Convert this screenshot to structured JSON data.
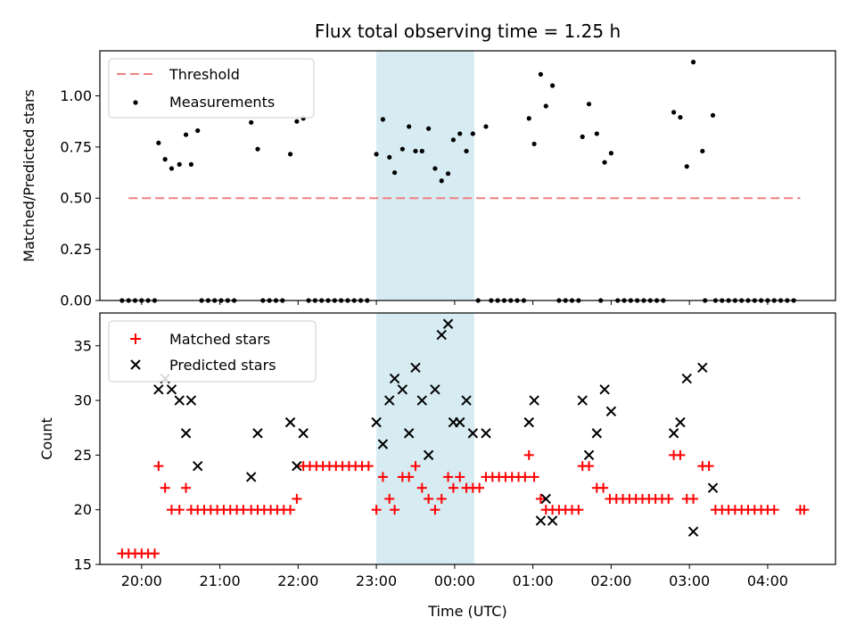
{
  "chart_data": [
    {
      "type": "scatter",
      "title": "Flux total observing time = 1.25 h",
      "xlabel": "",
      "ylabel": "Matched/Predicted stars",
      "xlim": [
        "19:28",
        "04:52"
      ],
      "ylim": [
        0.0,
        1.22
      ],
      "yticks": [
        "0.00",
        "0.25",
        "0.50",
        "0.75",
        "1.00"
      ],
      "shaded_interval": {
        "start": "23:00",
        "end": "00:15",
        "color": "#add8e6"
      },
      "legend": {
        "placement": "top-left",
        "entries": [
          "Threshold",
          "Measurements"
        ]
      },
      "threshold": {
        "name": "Threshold",
        "y": 0.5,
        "x_start": "19:50",
        "x_end": "04:25",
        "color": "#f08080",
        "style": "dashed"
      },
      "measurements": {
        "name": "Measurements",
        "color": "#000000",
        "points": [
          [
            "19:45",
            0
          ],
          [
            "19:50",
            0
          ],
          [
            "19:55",
            0
          ],
          [
            "20:00",
            0
          ],
          [
            "20:05",
            0
          ],
          [
            "20:10",
            0
          ],
          [
            "20:13",
            0.77
          ],
          [
            "20:18",
            0.69
          ],
          [
            "20:23",
            0.645
          ],
          [
            "20:29",
            0.665
          ],
          [
            "20:34",
            0.81
          ],
          [
            "20:38",
            0.665
          ],
          [
            "20:43",
            0.83
          ],
          [
            "20:46",
            0
          ],
          [
            "20:51",
            0
          ],
          [
            "20:56",
            0
          ],
          [
            "21:01",
            0
          ],
          [
            "21:06",
            0
          ],
          [
            "21:11",
            0
          ],
          [
            "21:24",
            0.87
          ],
          [
            "21:29",
            0.74
          ],
          [
            "21:33",
            0
          ],
          [
            "21:38",
            0
          ],
          [
            "21:43",
            0
          ],
          [
            "21:48",
            0
          ],
          [
            "21:54",
            0.715
          ],
          [
            "21:59",
            0.875
          ],
          [
            "22:04",
            0.89
          ],
          [
            "22:08",
            0
          ],
          [
            "22:13",
            0
          ],
          [
            "22:18",
            0
          ],
          [
            "22:23",
            0
          ],
          [
            "22:28",
            0
          ],
          [
            "22:33",
            0
          ],
          [
            "22:38",
            0
          ],
          [
            "22:43",
            0
          ],
          [
            "22:48",
            0
          ],
          [
            "22:53",
            0
          ],
          [
            "23:00",
            0.715
          ],
          [
            "23:05",
            0.885
          ],
          [
            "23:10",
            0.7
          ],
          [
            "23:14",
            0.625
          ],
          [
            "23:20",
            0.74
          ],
          [
            "23:25",
            0.85
          ],
          [
            "23:30",
            0.73
          ],
          [
            "23:35",
            0.73
          ],
          [
            "23:40",
            0.84
          ],
          [
            "23:45",
            0.645
          ],
          [
            "23:50",
            0.585
          ],
          [
            "23:55",
            0.62
          ],
          [
            "23:59",
            0.785
          ],
          [
            "00:04",
            0.815
          ],
          [
            "00:09",
            0.73
          ],
          [
            "00:14",
            0.815
          ],
          [
            "00:24",
            0.85
          ],
          [
            "00:18",
            0
          ],
          [
            "00:28",
            0
          ],
          [
            "00:33",
            0
          ],
          [
            "00:38",
            0
          ],
          [
            "00:43",
            0
          ],
          [
            "00:48",
            0
          ],
          [
            "00:53",
            0
          ],
          [
            "00:57",
            0.89
          ],
          [
            "01:01",
            0.765
          ],
          [
            "01:06",
            1.105
          ],
          [
            "01:10",
            0.95
          ],
          [
            "01:15",
            1.05
          ],
          [
            "01:20",
            0
          ],
          [
            "01:25",
            0
          ],
          [
            "01:30",
            0
          ],
          [
            "01:35",
            0
          ],
          [
            "01:38",
            0.8
          ],
          [
            "01:43",
            0.96
          ],
          [
            "01:49",
            0.815
          ],
          [
            "01:55",
            0.675
          ],
          [
            "02:00",
            0.72
          ],
          [
            "01:52",
            0
          ],
          [
            "02:05",
            0
          ],
          [
            "02:10",
            0
          ],
          [
            "02:15",
            0
          ],
          [
            "02:20",
            0
          ],
          [
            "02:25",
            0
          ],
          [
            "02:30",
            0
          ],
          [
            "02:35",
            0
          ],
          [
            "02:40",
            0
          ],
          [
            "02:48",
            0.92
          ],
          [
            "02:53",
            0.895
          ],
          [
            "02:58",
            0.655
          ],
          [
            "03:03",
            1.165
          ],
          [
            "03:10",
            0.73
          ],
          [
            "03:18",
            0.905
          ],
          [
            "03:12",
            0
          ],
          [
            "03:20",
            0
          ],
          [
            "03:25",
            0
          ],
          [
            "03:30",
            0
          ],
          [
            "03:35",
            0
          ],
          [
            "03:40",
            0
          ],
          [
            "03:45",
            0
          ],
          [
            "03:50",
            0
          ],
          [
            "03:55",
            0
          ],
          [
            "04:00",
            0
          ],
          [
            "04:05",
            0
          ],
          [
            "04:10",
            0
          ],
          [
            "04:15",
            0
          ],
          [
            "04:20",
            0
          ]
        ]
      }
    },
    {
      "type": "scatter",
      "title": "",
      "xlabel": "Time (UTC)",
      "ylabel": "Count",
      "xlim": [
        "19:28",
        "04:52"
      ],
      "ylim": [
        15,
        38
      ],
      "yticks": [
        "15",
        "20",
        "25",
        "30",
        "35"
      ],
      "xticks": [
        "20:00",
        "21:00",
        "22:00",
        "23:00",
        "00:00",
        "01:00",
        "02:00",
        "03:00",
        "04:00"
      ],
      "shaded_interval": {
        "start": "23:00",
        "end": "00:15",
        "color": "#add8e6"
      },
      "legend": {
        "placement": "top-left",
        "entries": [
          "Matched stars",
          "Predicted stars"
        ]
      },
      "series": [
        {
          "name": "Matched stars",
          "marker": "plus",
          "color": "#ff0000",
          "points": [
            [
              "19:45",
              16
            ],
            [
              "19:50",
              16
            ],
            [
              "19:55",
              16
            ],
            [
              "20:00",
              16
            ],
            [
              "20:05",
              16
            ],
            [
              "20:10",
              16
            ],
            [
              "20:13",
              24
            ],
            [
              "20:18",
              22
            ],
            [
              "20:23",
              20
            ],
            [
              "20:29",
              20
            ],
            [
              "20:34",
              22
            ],
            [
              "20:38",
              20
            ],
            [
              "20:43",
              20
            ],
            [
              "20:48",
              20
            ],
            [
              "20:53",
              20
            ],
            [
              "20:58",
              20
            ],
            [
              "21:03",
              20
            ],
            [
              "21:08",
              20
            ],
            [
              "21:13",
              20
            ],
            [
              "21:18",
              20
            ],
            [
              "21:24",
              20
            ],
            [
              "21:29",
              20
            ],
            [
              "21:34",
              20
            ],
            [
              "21:39",
              20
            ],
            [
              "21:44",
              20
            ],
            [
              "21:49",
              20
            ],
            [
              "21:54",
              20
            ],
            [
              "21:59",
              21
            ],
            [
              "22:04",
              24
            ],
            [
              "22:09",
              24
            ],
            [
              "22:14",
              24
            ],
            [
              "22:19",
              24
            ],
            [
              "22:24",
              24
            ],
            [
              "22:29",
              24
            ],
            [
              "22:34",
              24
            ],
            [
              "22:39",
              24
            ],
            [
              "22:44",
              24
            ],
            [
              "22:49",
              24
            ],
            [
              "22:54",
              24
            ],
            [
              "23:00",
              20
            ],
            [
              "23:05",
              23
            ],
            [
              "23:10",
              21
            ],
            [
              "23:14",
              20
            ],
            [
              "23:20",
              23
            ],
            [
              "23:25",
              23
            ],
            [
              "23:30",
              24
            ],
            [
              "23:35",
              22
            ],
            [
              "23:40",
              21
            ],
            [
              "23:45",
              20
            ],
            [
              "23:50",
              21
            ],
            [
              "23:55",
              23
            ],
            [
              "23:59",
              22
            ],
            [
              "00:04",
              23
            ],
            [
              "00:09",
              22
            ],
            [
              "00:14",
              22
            ],
            [
              "00:19",
              22
            ],
            [
              "00:24",
              23
            ],
            [
              "00:29",
              23
            ],
            [
              "00:34",
              23
            ],
            [
              "00:39",
              23
            ],
            [
              "00:44",
              23
            ],
            [
              "00:49",
              23
            ],
            [
              "00:54",
              23
            ],
            [
              "00:57",
              25
            ],
            [
              "01:01",
              23
            ],
            [
              "01:06",
              21
            ],
            [
              "01:10",
              20
            ],
            [
              "01:15",
              20
            ],
            [
              "01:20",
              20
            ],
            [
              "01:25",
              20
            ],
            [
              "01:30",
              20
            ],
            [
              "01:35",
              20
            ],
            [
              "01:38",
              24
            ],
            [
              "01:43",
              24
            ],
            [
              "01:49",
              22
            ],
            [
              "01:54",
              22
            ],
            [
              "01:59",
              21
            ],
            [
              "02:04",
              21
            ],
            [
              "02:09",
              21
            ],
            [
              "02:14",
              21
            ],
            [
              "02:19",
              21
            ],
            [
              "02:24",
              21
            ],
            [
              "02:29",
              21
            ],
            [
              "02:34",
              21
            ],
            [
              "02:39",
              21
            ],
            [
              "02:44",
              21
            ],
            [
              "02:48",
              25
            ],
            [
              "02:53",
              25
            ],
            [
              "02:58",
              21
            ],
            [
              "03:03",
              21
            ],
            [
              "03:10",
              24
            ],
            [
              "03:15",
              24
            ],
            [
              "03:20",
              20
            ],
            [
              "03:25",
              20
            ],
            [
              "03:30",
              20
            ],
            [
              "03:35",
              20
            ],
            [
              "03:40",
              20
            ],
            [
              "03:45",
              20
            ],
            [
              "03:50",
              20
            ],
            [
              "03:55",
              20
            ],
            [
              "04:00",
              20
            ],
            [
              "04:05",
              20
            ],
            [
              "04:25",
              20
            ],
            [
              "04:28",
              20
            ]
          ]
        },
        {
          "name": "Predicted stars",
          "marker": "x",
          "color": "#000000",
          "points": [
            [
              "20:13",
              31
            ],
            [
              "20:18",
              32
            ],
            [
              "20:23",
              31
            ],
            [
              "20:29",
              30
            ],
            [
              "20:34",
              27
            ],
            [
              "20:38",
              30
            ],
            [
              "20:43",
              24
            ],
            [
              "21:24",
              23
            ],
            [
              "21:29",
              27
            ],
            [
              "21:54",
              28
            ],
            [
              "21:59",
              24
            ],
            [
              "22:04",
              27
            ],
            [
              "23:00",
              28
            ],
            [
              "23:05",
              26
            ],
            [
              "23:10",
              30
            ],
            [
              "23:14",
              32
            ],
            [
              "23:20",
              31
            ],
            [
              "23:25",
              27
            ],
            [
              "23:30",
              33
            ],
            [
              "23:35",
              30
            ],
            [
              "23:40",
              25
            ],
            [
              "23:45",
              31
            ],
            [
              "23:50",
              36
            ],
            [
              "23:55",
              37
            ],
            [
              "23:59",
              28
            ],
            [
              "00:04",
              28
            ],
            [
              "00:09",
              30
            ],
            [
              "00:14",
              27
            ],
            [
              "00:24",
              27
            ],
            [
              "00:57",
              28
            ],
            [
              "01:01",
              30
            ],
            [
              "01:06",
              19
            ],
            [
              "01:10",
              21
            ],
            [
              "01:15",
              19
            ],
            [
              "01:38",
              30
            ],
            [
              "01:43",
              25
            ],
            [
              "01:49",
              27
            ],
            [
              "01:55",
              31
            ],
            [
              "02:00",
              29
            ],
            [
              "02:48",
              27
            ],
            [
              "02:53",
              28
            ],
            [
              "02:58",
              32
            ],
            [
              "03:03",
              18
            ],
            [
              "03:10",
              33
            ],
            [
              "03:18",
              22
            ]
          ]
        }
      ]
    }
  ]
}
